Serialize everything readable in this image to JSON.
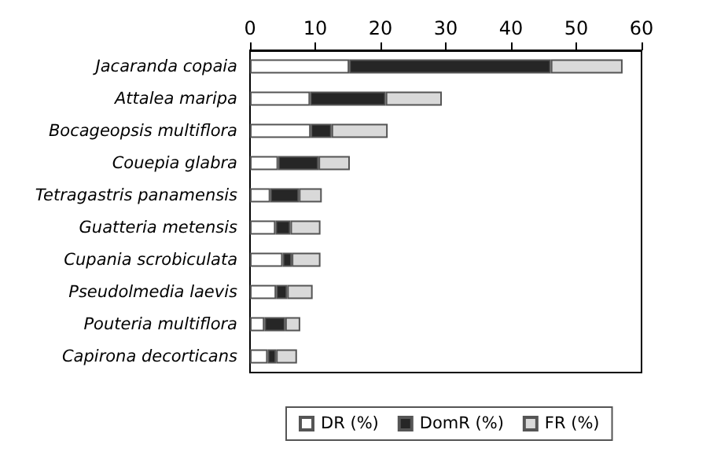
{
  "chart_data": {
    "type": "bar",
    "orientation": "horizontal",
    "stacked": true,
    "categories": [
      "Jacaranda copaia",
      "Attalea maripa",
      "Bocageopsis multiflora",
      "Couepia glabra",
      "Tetragastris panamensis",
      "Guatteria metensis",
      "Cupania scrobiculata",
      "Pseudolmedia laevis",
      "Pouteria multiflora",
      "Capirona decorticans"
    ],
    "series": [
      {
        "name": "DR (%)",
        "color": "#ffffff",
        "values": [
          15.2,
          9.2,
          9.3,
          4.3,
          3.1,
          3.9,
          5.0,
          4.0,
          2.2,
          2.7
        ]
      },
      {
        "name": "DomR (%)",
        "color": "#262626",
        "values": [
          30.9,
          11.6,
          3.2,
          6.2,
          4.4,
          2.3,
          1.4,
          1.7,
          3.2,
          1.3
        ]
      },
      {
        "name": "FR (%)",
        "color": "#d9d9d9",
        "values": [
          11.0,
          8.6,
          8.6,
          4.8,
          3.5,
          4.6,
          4.4,
          3.9,
          2.3,
          3.2
        ]
      }
    ],
    "xlim": [
      0,
      60
    ],
    "xticks": [
      0,
      10,
      20,
      30,
      40,
      50,
      60
    ],
    "grid": false,
    "legend": "bottom"
  }
}
